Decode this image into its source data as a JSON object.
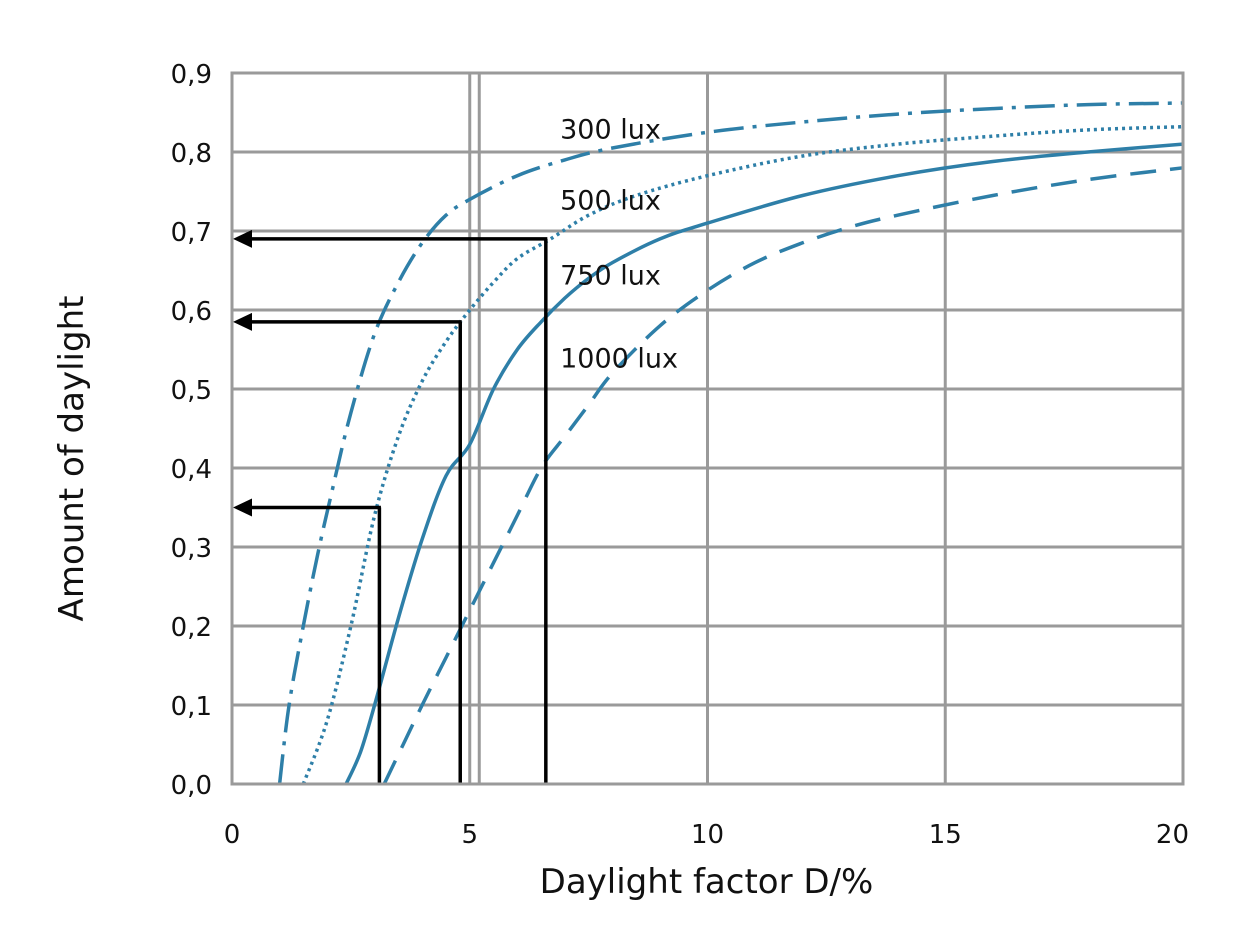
{
  "chart_data": {
    "type": "line",
    "xlabel": "Daylight factor D/%",
    "ylabel": "Amount of daylight",
    "xlim": [
      0,
      20
    ],
    "ylim": [
      0,
      0.9
    ],
    "x_ticks": [
      {
        "value": 0,
        "label": "0"
      },
      {
        "value": 5,
        "label": "5"
      },
      {
        "value": 10,
        "label": "10"
      },
      {
        "value": 15,
        "label": "15"
      },
      {
        "value": 20,
        "label": "20"
      }
    ],
    "y_ticks": [
      {
        "value": 0,
        "label": "0,0"
      },
      {
        "value": 0.1,
        "label": "0,1"
      },
      {
        "value": 0.2,
        "label": "0,2"
      },
      {
        "value": 0.3,
        "label": "0,3"
      },
      {
        "value": 0.4,
        "label": "0,4"
      },
      {
        "value": 0.5,
        "label": "0,5"
      },
      {
        "value": 0.6,
        "label": "0,6"
      },
      {
        "value": 0.7,
        "label": "0,7"
      },
      {
        "value": 0.8,
        "label": "0,8"
      },
      {
        "value": 0.9,
        "label": "0,9"
      }
    ],
    "x_gridlines": [
      0,
      5,
      5.2,
      10,
      15,
      20
    ],
    "grid": true,
    "series_color": "#2e7fa8",
    "grid_color": "#9a9a9a",
    "series": [
      {
        "name": "300 lux",
        "dash": "dash-dot",
        "label_at": [
          6.9,
          0.83
        ],
        "x": [
          1.0,
          1.2,
          1.5,
          1.8,
          2.1,
          2.5,
          3.0,
          3.5,
          4.0,
          4.5,
          5.0,
          6.0,
          7.0,
          8.0,
          10.0,
          12.0,
          14.0,
          16.0,
          18.0,
          20.0
        ],
        "y": [
          0.0,
          0.1,
          0.2,
          0.29,
          0.37,
          0.47,
          0.57,
          0.635,
          0.685,
          0.72,
          0.74,
          0.77,
          0.79,
          0.805,
          0.825,
          0.838,
          0.848,
          0.855,
          0.86,
          0.862
        ]
      },
      {
        "name": "500 lux",
        "dash": "dotted",
        "label_at": [
          6.9,
          0.74
        ],
        "x": [
          1.5,
          2.0,
          2.5,
          3.0,
          3.5,
          4.0,
          4.5,
          5.0,
          5.5,
          6.0,
          6.7,
          7.5,
          8.5,
          10.0,
          12.0,
          14.0,
          16.0,
          18.0,
          20.0
        ],
        "y": [
          0.0,
          0.08,
          0.2,
          0.34,
          0.44,
          0.51,
          0.56,
          0.6,
          0.635,
          0.665,
          0.69,
          0.72,
          0.745,
          0.77,
          0.795,
          0.81,
          0.82,
          0.828,
          0.832
        ]
      },
      {
        "name": "750 lux",
        "dash": "solid",
        "label_at": [
          6.9,
          0.645
        ],
        "x": [
          2.4,
          2.7,
          3.0,
          3.5,
          4.0,
          4.5,
          5.0,
          5.5,
          6.0,
          6.5,
          7.0,
          7.5,
          8.0,
          9.0,
          10.0,
          12.0,
          14.0,
          16.0,
          18.0,
          20.0
        ],
        "y": [
          0.0,
          0.04,
          0.1,
          0.21,
          0.31,
          0.39,
          0.43,
          0.5,
          0.55,
          0.585,
          0.615,
          0.64,
          0.66,
          0.69,
          0.71,
          0.745,
          0.77,
          0.788,
          0.8,
          0.81
        ]
      },
      {
        "name": "1000 lux",
        "dash": "dashed",
        "label_at": [
          6.9,
          0.54
        ],
        "x": [
          3.2,
          3.6,
          4.0,
          4.5,
          5.0,
          5.5,
          6.0,
          6.5,
          7.0,
          7.5,
          8.0,
          9.0,
          10.0,
          11.0,
          12.0,
          13.0,
          14.0,
          16.0,
          18.0,
          20.0
        ],
        "y": [
          0.0,
          0.05,
          0.1,
          0.16,
          0.22,
          0.28,
          0.34,
          0.4,
          0.44,
          0.48,
          0.52,
          0.58,
          0.625,
          0.66,
          0.685,
          0.705,
          0.72,
          0.745,
          0.765,
          0.78
        ]
      }
    ],
    "reference_lines": [
      {
        "x": 3.1,
        "y": 0.35
      },
      {
        "x": 4.8,
        "y": 0.585
      },
      {
        "x": 6.6,
        "y": 0.69
      }
    ]
  }
}
